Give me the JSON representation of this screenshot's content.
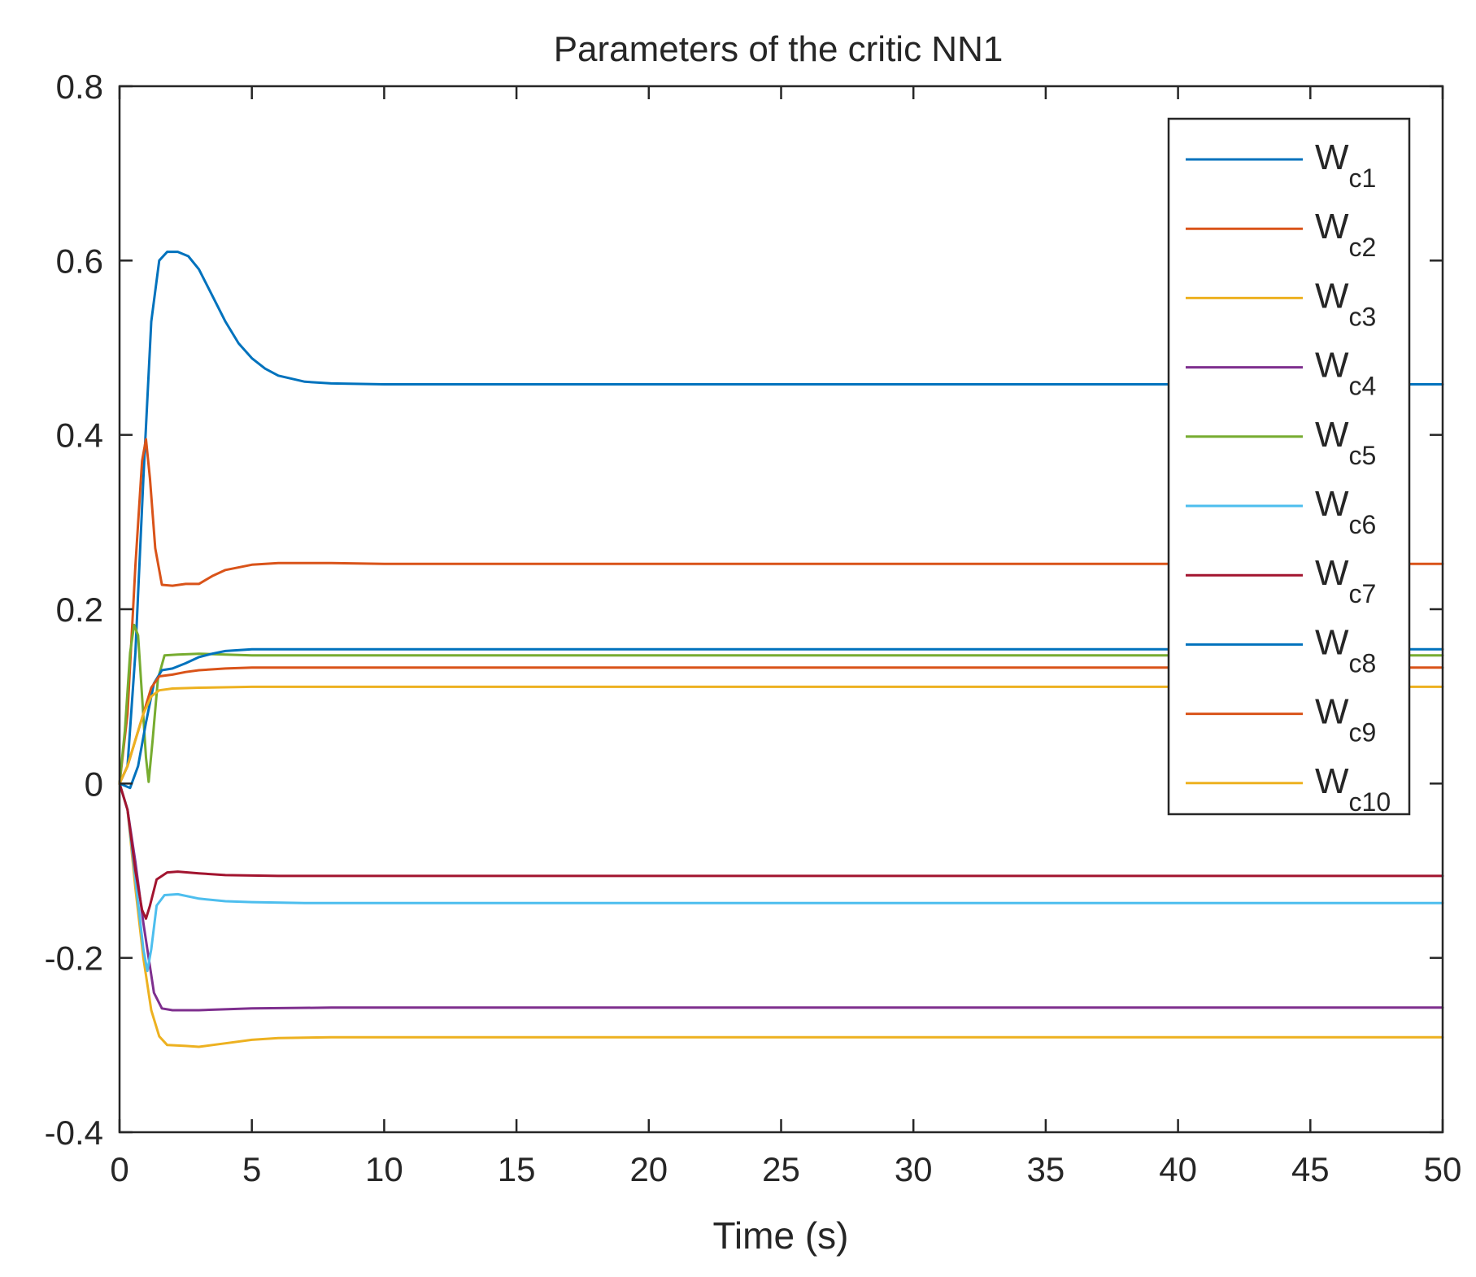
{
  "chart_data": {
    "type": "line",
    "title": "Parameters of the critic NN1",
    "xlabel": "Time (s)",
    "ylabel": "",
    "xlim": [
      0,
      50
    ],
    "ylim": [
      -0.4,
      0.8
    ],
    "xticks": [
      "0",
      "5",
      "10",
      "15",
      "20",
      "25",
      "30",
      "35",
      "40",
      "45",
      "50"
    ],
    "yticks": [
      "-0.4",
      "-0.2",
      "0",
      "0.2",
      "0.4",
      "0.6",
      "0.8"
    ],
    "grid": false,
    "legend_position": "top-right",
    "series": [
      {
        "name": "W",
        "sub": "c1",
        "color": "#0072BD",
        "points": [
          [
            0,
            0
          ],
          [
            0.3,
            0.02
          ],
          [
            0.6,
            0.15
          ],
          [
            0.9,
            0.35
          ],
          [
            1.2,
            0.53
          ],
          [
            1.5,
            0.6
          ],
          [
            1.8,
            0.61
          ],
          [
            2.2,
            0.61
          ],
          [
            2.6,
            0.605
          ],
          [
            3,
            0.59
          ],
          [
            3.5,
            0.56
          ],
          [
            4,
            0.53
          ],
          [
            4.5,
            0.505
          ],
          [
            5,
            0.488
          ],
          [
            5.5,
            0.476
          ],
          [
            6,
            0.468
          ],
          [
            7,
            0.461
          ],
          [
            8,
            0.459
          ],
          [
            10,
            0.458
          ],
          [
            50,
            0.458
          ]
        ]
      },
      {
        "name": "W",
        "sub": "c2",
        "color": "#D95319",
        "points": [
          [
            0,
            0
          ],
          [
            0.3,
            0.08
          ],
          [
            0.6,
            0.25
          ],
          [
            0.85,
            0.37
          ],
          [
            1.0,
            0.395
          ],
          [
            1.15,
            0.35
          ],
          [
            1.35,
            0.27
          ],
          [
            1.6,
            0.228
          ],
          [
            2.0,
            0.227
          ],
          [
            2.5,
            0.229
          ],
          [
            3.0,
            0.229
          ],
          [
            3.5,
            0.238
          ],
          [
            4,
            0.245
          ],
          [
            5,
            0.251
          ],
          [
            6,
            0.253
          ],
          [
            8,
            0.253
          ],
          [
            10,
            0.252
          ],
          [
            50,
            0.252
          ]
        ]
      },
      {
        "name": "W",
        "sub": "c3",
        "color": "#EDB120",
        "points": [
          [
            0,
            0
          ],
          [
            0.3,
            -0.03
          ],
          [
            0.6,
            -0.12
          ],
          [
            0.9,
            -0.2
          ],
          [
            1.2,
            -0.26
          ],
          [
            1.5,
            -0.29
          ],
          [
            1.8,
            -0.3
          ],
          [
            2.5,
            -0.301
          ],
          [
            3,
            -0.302
          ],
          [
            4,
            -0.298
          ],
          [
            5,
            -0.294
          ],
          [
            6,
            -0.292
          ],
          [
            8,
            -0.291
          ],
          [
            50,
            -0.291
          ]
        ]
      },
      {
        "name": "W",
        "sub": "c4",
        "color": "#7E2F8E",
        "points": [
          [
            0,
            0
          ],
          [
            0.3,
            -0.03
          ],
          [
            0.6,
            -0.09
          ],
          [
            0.9,
            -0.16
          ],
          [
            1.1,
            -0.2
          ],
          [
            1.3,
            -0.24
          ],
          [
            1.6,
            -0.258
          ],
          [
            2,
            -0.26
          ],
          [
            3,
            -0.26
          ],
          [
            5,
            -0.258
          ],
          [
            8,
            -0.257
          ],
          [
            50,
            -0.257
          ]
        ]
      },
      {
        "name": "W",
        "sub": "c5",
        "color": "#77AC30",
        "points": [
          [
            0,
            0
          ],
          [
            0.2,
            0.06
          ],
          [
            0.4,
            0.15
          ],
          [
            0.55,
            0.182
          ],
          [
            0.7,
            0.17
          ],
          [
            0.85,
            0.1
          ],
          [
            1.0,
            0.03
          ],
          [
            1.1,
            0.002
          ],
          [
            1.25,
            0.05
          ],
          [
            1.45,
            0.12
          ],
          [
            1.7,
            0.147
          ],
          [
            2.2,
            0.148
          ],
          [
            3,
            0.149
          ],
          [
            4,
            0.148
          ],
          [
            5,
            0.147
          ],
          [
            50,
            0.147
          ]
        ]
      },
      {
        "name": "W",
        "sub": "c6",
        "color": "#4DBEEE",
        "points": [
          [
            0,
            0
          ],
          [
            0.3,
            -0.03
          ],
          [
            0.6,
            -0.11
          ],
          [
            0.9,
            -0.19
          ],
          [
            1.05,
            -0.215
          ],
          [
            1.2,
            -0.19
          ],
          [
            1.4,
            -0.14
          ],
          [
            1.7,
            -0.128
          ],
          [
            2.2,
            -0.127
          ],
          [
            3,
            -0.132
          ],
          [
            4,
            -0.135
          ],
          [
            5,
            -0.136
          ],
          [
            7,
            -0.137
          ],
          [
            50,
            -0.137
          ]
        ]
      },
      {
        "name": "W",
        "sub": "c7",
        "color": "#A2142F",
        "points": [
          [
            0,
            0
          ],
          [
            0.3,
            -0.03
          ],
          [
            0.6,
            -0.1
          ],
          [
            0.85,
            -0.145
          ],
          [
            1.0,
            -0.155
          ],
          [
            1.15,
            -0.14
          ],
          [
            1.4,
            -0.11
          ],
          [
            1.8,
            -0.102
          ],
          [
            2.2,
            -0.101
          ],
          [
            3,
            -0.103
          ],
          [
            4,
            -0.105
          ],
          [
            6,
            -0.106
          ],
          [
            50,
            -0.106
          ]
        ]
      },
      {
        "name": "W",
        "sub": "c8",
        "color": "#0072BD",
        "points": [
          [
            0,
            0
          ],
          [
            0.4,
            -0.005
          ],
          [
            0.7,
            0.02
          ],
          [
            1.0,
            0.07
          ],
          [
            1.3,
            0.115
          ],
          [
            1.6,
            0.13
          ],
          [
            2.0,
            0.132
          ],
          [
            2.5,
            0.138
          ],
          [
            3,
            0.145
          ],
          [
            3.5,
            0.149
          ],
          [
            4,
            0.152
          ],
          [
            5,
            0.154
          ],
          [
            6,
            0.154
          ],
          [
            50,
            0.154
          ]
        ]
      },
      {
        "name": "W",
        "sub": "c9",
        "color": "#D95319",
        "points": [
          [
            0,
            0
          ],
          [
            0.3,
            0.02
          ],
          [
            0.6,
            0.05
          ],
          [
            0.9,
            0.08
          ],
          [
            1.2,
            0.11
          ],
          [
            1.5,
            0.123
          ],
          [
            2,
            0.125
          ],
          [
            2.5,
            0.128
          ],
          [
            3,
            0.13
          ],
          [
            4,
            0.132
          ],
          [
            5,
            0.133
          ],
          [
            50,
            0.133
          ]
        ]
      },
      {
        "name": "W",
        "sub": "c10",
        "color": "#EDB120",
        "points": [
          [
            0,
            0
          ],
          [
            0.3,
            0.02
          ],
          [
            0.6,
            0.05
          ],
          [
            0.9,
            0.08
          ],
          [
            1.2,
            0.1
          ],
          [
            1.5,
            0.107
          ],
          [
            2,
            0.109
          ],
          [
            3,
            0.11
          ],
          [
            5,
            0.111
          ],
          [
            50,
            0.111
          ]
        ]
      }
    ]
  }
}
